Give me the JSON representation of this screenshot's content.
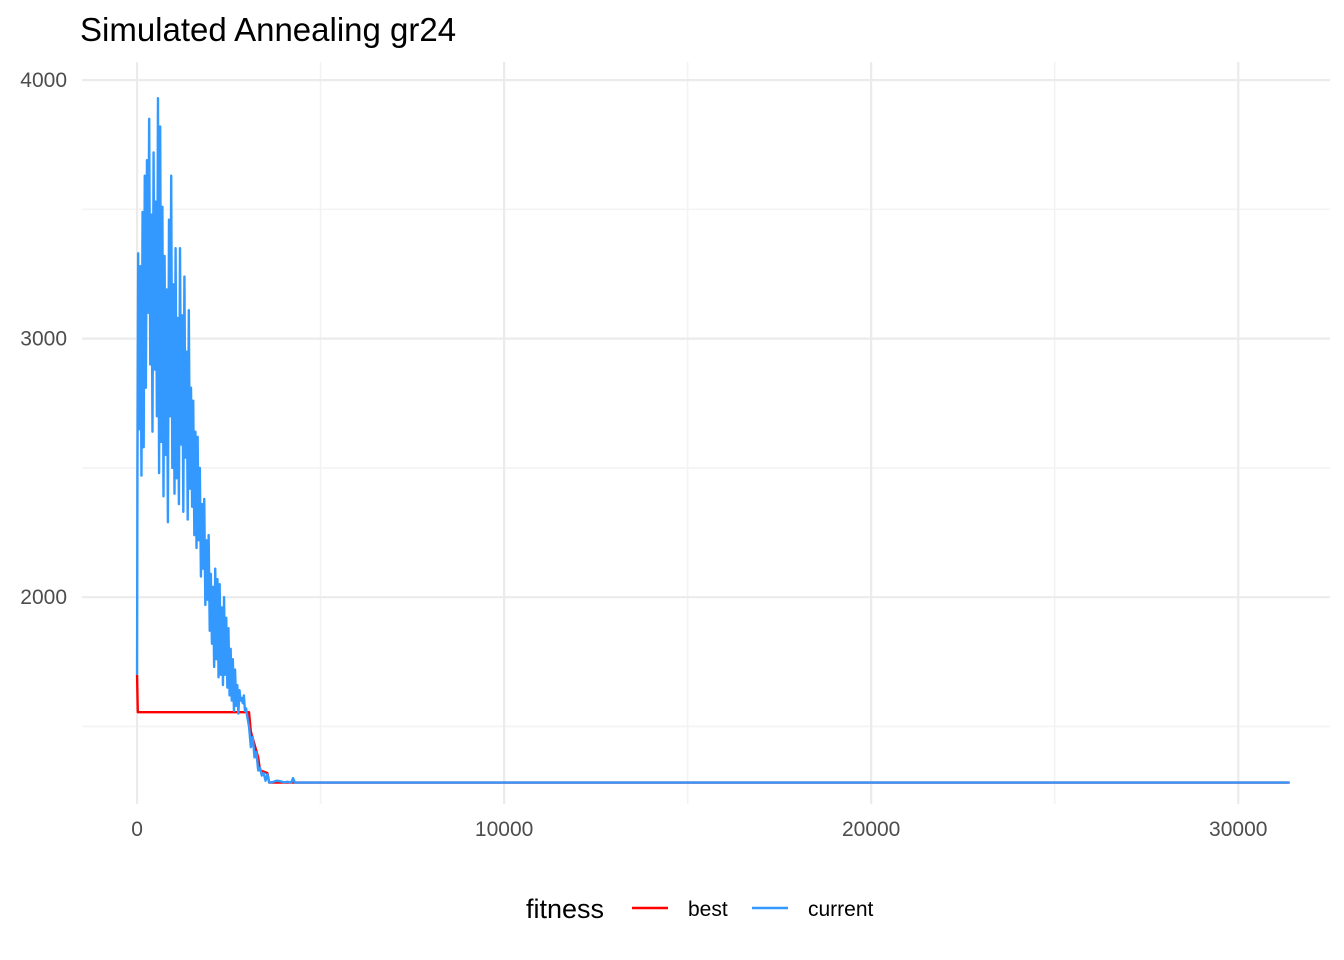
{
  "chart_data": {
    "type": "line",
    "title": "Simulated Annealing gr24",
    "xlabel": "",
    "ylabel": "",
    "xlim": [
      -1500,
      32500
    ],
    "ylim": [
      1200,
      4070
    ],
    "x_ticks": [
      0,
      10000,
      20000,
      30000
    ],
    "x_tick_labels": [
      "0",
      "10000",
      "20000",
      "30000"
    ],
    "y_ticks": [
      2000,
      3000,
      4000
    ],
    "y_tick_labels": [
      "2000",
      "3000",
      "4000"
    ],
    "grid": true,
    "legend": {
      "title": "fitness",
      "position": "bottom",
      "entries": [
        {
          "label": "best",
          "color": "#ff0000"
        },
        {
          "label": "current",
          "color": "#3399ff"
        }
      ]
    },
    "series": [
      {
        "name": "best",
        "color": "#ff0000",
        "x": [
          0,
          20,
          3050,
          3100,
          3300,
          3350,
          3550,
          3600,
          31400
        ],
        "y": [
          1700,
          1555,
          1555,
          1480,
          1380,
          1330,
          1320,
          1283,
          1283
        ]
      },
      {
        "name": "current",
        "color": "#3399ff",
        "x": [
          0,
          10,
          30,
          60,
          90,
          120,
          150,
          180,
          210,
          240,
          270,
          300,
          330,
          360,
          390,
          420,
          450,
          480,
          510,
          540,
          570,
          600,
          630,
          660,
          690,
          720,
          750,
          780,
          810,
          840,
          870,
          900,
          930,
          960,
          990,
          1020,
          1050,
          1080,
          1110,
          1140,
          1170,
          1200,
          1230,
          1260,
          1290,
          1320,
          1350,
          1380,
          1410,
          1440,
          1470,
          1500,
          1530,
          1560,
          1590,
          1620,
          1650,
          1680,
          1710,
          1740,
          1770,
          1800,
          1830,
          1860,
          1890,
          1920,
          1950,
          1980,
          2010,
          2040,
          2070,
          2100,
          2130,
          2160,
          2190,
          2220,
          2250,
          2280,
          2310,
          2340,
          2370,
          2400,
          2430,
          2460,
          2490,
          2520,
          2550,
          2580,
          2610,
          2640,
          2670,
          2700,
          2730,
          2760,
          2790,
          2820,
          2850,
          2880,
          2910,
          2940,
          2970,
          3000,
          3050,
          3100,
          3150,
          3200,
          3250,
          3300,
          3350,
          3400,
          3450,
          3500,
          3550,
          3600,
          3700,
          3800,
          3900,
          4000,
          4100,
          4200,
          4250,
          4300,
          4400,
          31400
        ],
        "y": [
          1700,
          2480,
          3330,
          2650,
          3280,
          2470,
          3490,
          2580,
          3630,
          2810,
          3690,
          3100,
          3850,
          2900,
          3480,
          2640,
          3720,
          2880,
          3530,
          2700,
          3930,
          2480,
          3820,
          2600,
          3510,
          2390,
          3320,
          2550,
          3190,
          2290,
          3460,
          2700,
          3630,
          2500,
          3210,
          2400,
          3350,
          2460,
          3080,
          2360,
          3350,
          2590,
          3090,
          2330,
          3240,
          2540,
          2950,
          2300,
          3110,
          2420,
          2810,
          2350,
          2760,
          2240,
          2640,
          2190,
          2620,
          2220,
          2500,
          2080,
          2360,
          2110,
          2380,
          1970,
          2220,
          1990,
          2240,
          1870,
          2090,
          1820,
          2040,
          1730,
          2110,
          1760,
          2070,
          1690,
          2050,
          1700,
          1960,
          1660,
          2000,
          1700,
          1920,
          1650,
          1880,
          1620,
          1800,
          1600,
          1760,
          1560,
          1720,
          1580,
          1660,
          1550,
          1640,
          1600,
          1610,
          1590,
          1620,
          1560,
          1570,
          1540,
          1500,
          1420,
          1460,
          1380,
          1400,
          1330,
          1340,
          1310,
          1320,
          1290,
          1315,
          1283,
          1285,
          1290,
          1288,
          1284,
          1286,
          1283,
          1300,
          1283,
          1283,
          1283
        ]
      }
    ]
  }
}
